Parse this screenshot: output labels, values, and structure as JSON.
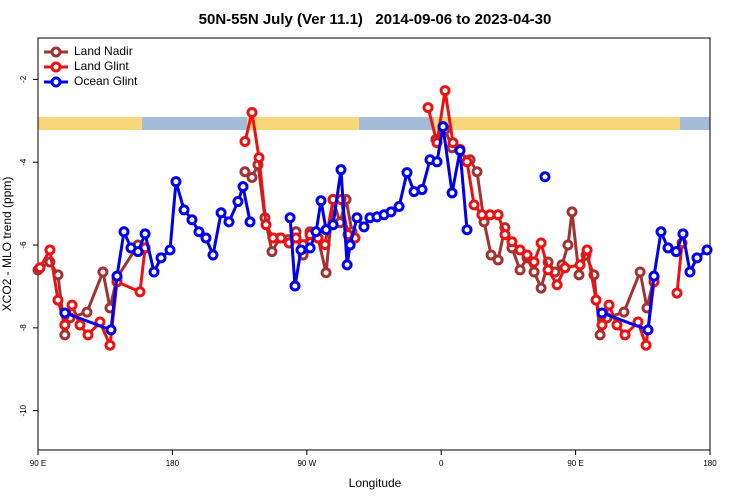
{
  "chart_data": {
    "type": "line",
    "title": "50N-55N July (Ver 11.1)   2014-09-06 to 2023-04-30",
    "xlabel": "Longitude",
    "ylabel": "XCO2 - MLO trend (ppm)",
    "xlim": [
      90,
      540
    ],
    "ylim": [
      -10.95,
      -1.0
    ],
    "xticks": [
      {
        "value": 90,
        "label": "90 E"
      },
      180,
      {
        "value": 270,
        "label": "90 W"
      },
      {
        "value": 360,
        "label": "0"
      },
      {
        "value": 450,
        "label": "90 E"
      },
      {
        "value": 540,
        "label": "180"
      }
    ],
    "yticks": [
      -2,
      -4,
      -6,
      -8,
      -10
    ],
    "legend": "upper left",
    "series": [
      {
        "name": "Land Nadir",
        "color": "#a33333",
        "x": [
          90,
          98,
          103.4,
          108,
          111.4,
          122.8,
          133.5,
          138.2,
          142.9,
          157,
          null,
          228.6,
          233.3,
          237.3,
          242,
          246.7,
          252,
          257.4,
          262.8,
          267.5,
          272.2,
          277.5,
          282.9,
          287.6,
          292.2,
          296.3,
          300.3,
          null,
          356.5,
          362.6,
          367.3,
          379.3,
          384,
          388.7,
          393.4,
          398.1,
          402.7,
          407.4,
          412.8,
          417.5,
          422.2,
          426.9,
          431.6,
          436.2,
          440.9,
          444.9,
          447.6,
          452.3,
          457,
          462.3,
          466.4,
          471,
          482.4,
          493.2,
          497.8,
          502.5
        ],
        "values": [
          -6.6,
          -6.41,
          -6.72,
          -8.17,
          -7.76,
          -7.62,
          -6.65,
          -7.52,
          -6.79,
          -6.0,
          null,
          -4.23,
          -4.37,
          -4.06,
          -5.34,
          -6.16,
          -5.83,
          -5.87,
          -5.68,
          -6.24,
          -5.68,
          -5.83,
          -6.67,
          -4.9,
          -5.46,
          -4.9,
          -5.68,
          null,
          -3.45,
          -3.21,
          -3.65,
          -3.94,
          -4.23,
          -5.44,
          -6.24,
          -6.36,
          -5.58,
          -6.07,
          -6.6,
          -6.31,
          -6.65,
          -7.04,
          -6.41,
          -6.65,
          -6.48,
          -6.0,
          -5.2,
          -6.72,
          -6.24,
          -6.72,
          -8.17,
          -7.76,
          -7.62,
          -6.65,
          -7.52,
          -6.79
        ]
      },
      {
        "name": "Land Glint",
        "color": "#ee1111",
        "x": [
          91.3,
          98,
          103.4,
          108,
          112.8,
          118.1,
          123.5,
          131.5,
          138.2,
          142.9,
          158.3,
          161.7,
          null,
          228.6,
          233.3,
          238,
          242.7,
          247.4,
          252.7,
          258.1,
          262.8,
          267.5,
          272.2,
          277.5,
          282.2,
          287.6,
          292.9,
          297.6,
          302.3,
          null,
          351.2,
          357.2,
          362.6,
          367.9,
          372.6,
          377.3,
          382,
          387.3,
          392.7,
          398.1,
          402.7,
          407.4,
          412.8,
          417.5,
          422.2,
          426.9,
          431.6,
          437.6,
          442.9,
          453,
          457.7,
          463.7,
          467.7,
          472.4,
          477.7,
          483.1,
          491.8,
          497.2,
          502.5,
          null,
          517.9,
          521.3
        ],
        "values": [
          -6.55,
          -6.12,
          -7.33,
          -7.93,
          -7.45,
          -7.93,
          -8.17,
          -7.86,
          -8.42,
          -6.89,
          -7.13,
          -6.07,
          null,
          -3.5,
          -2.8,
          -3.89,
          -5.51,
          -5.83,
          -5.83,
          -5.95,
          -5.83,
          -5.99,
          -5.75,
          -5.83,
          -5.99,
          -4.9,
          -4.9,
          -5.75,
          -5.83,
          null,
          -2.68,
          -3.53,
          -2.27,
          -3.53,
          -3.69,
          -3.99,
          -5.03,
          -5.27,
          -5.27,
          -5.27,
          -5.75,
          -5.92,
          -6.12,
          -6.24,
          -6.41,
          -5.95,
          -6.6,
          -6.96,
          -6.55,
          -6.48,
          -6.12,
          -7.33,
          -7.93,
          -7.45,
          -7.93,
          -8.17,
          -7.86,
          -8.42,
          -6.89,
          null,
          -7.16,
          -5.95
        ]
      },
      {
        "name": "Ocean Glint",
        "color": "#0000ee",
        "x": [
          108,
          138.9,
          142.9,
          147.6,
          152.3,
          157,
          161.7,
          167.7,
          172.4,
          178.4,
          182.4,
          187.8,
          193.1,
          197.8,
          202.5,
          207.2,
          212.6,
          217.9,
          223.9,
          227.3,
          232,
          null,
          258.8,
          262.1,
          266.1,
          272.2,
          276.2,
          279.5,
          282.9,
          287.6,
          292.9,
          297,
          299,
          303.6,
          308.3,
          312.3,
          317,
          321.7,
          326.4,
          331.8,
          337.1,
          341.8,
          347.2,
          352.5,
          357.2,
          361.2,
          367.3,
          372.6,
          377.3,
          null,
          429.5,
          null,
          467.7,
          498.5,
          502.5,
          507.2,
          511.9,
          517.3,
          521.9,
          526.6,
          531.3,
          538
        ],
        "values": [
          -7.64,
          -8.05,
          -6.75,
          -5.68,
          -6.07,
          -6.16,
          -5.73,
          -6.65,
          -6.31,
          -6.12,
          -4.47,
          -5.15,
          -5.39,
          -5.68,
          -5.83,
          -6.24,
          -5.22,
          -5.44,
          -4.95,
          -4.59,
          -5.44,
          null,
          -5.34,
          -6.99,
          -6.12,
          -6.07,
          -5.68,
          -4.93,
          -5.63,
          -5.51,
          -4.18,
          -6.48,
          -6.0,
          -5.34,
          -5.56,
          -5.34,
          -5.32,
          -5.27,
          -5.2,
          -5.07,
          -4.25,
          -4.71,
          -4.66,
          -3.94,
          -3.99,
          -3.14,
          -4.74,
          -3.72,
          -5.63,
          null,
          -4.35,
          null,
          -7.64,
          -8.05,
          -6.75,
          -5.68,
          -6.07,
          -6.16,
          -5.73,
          -6.65,
          -6.31,
          -6.12
        ]
      }
    ]
  }
}
